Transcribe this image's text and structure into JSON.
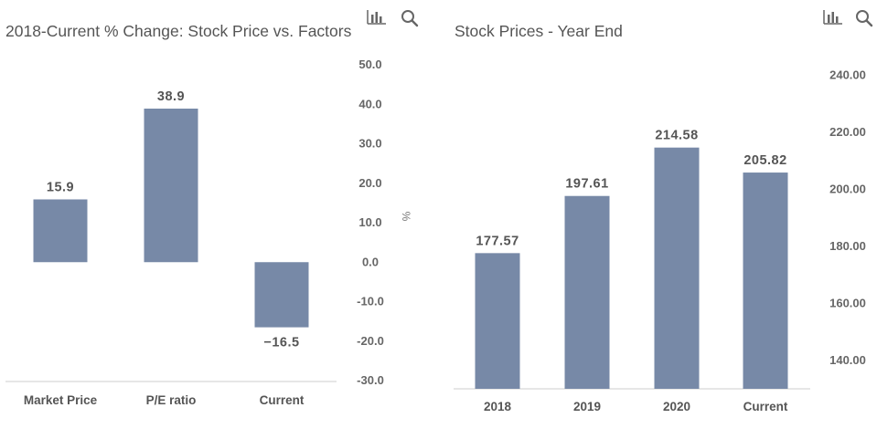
{
  "colors": {
    "bar": "#7789a7",
    "axis": "#cccccc",
    "text": "#555555"
  },
  "toolbar": {
    "chart_icon": "bar-chart-icon",
    "search_icon": "search-icon"
  },
  "chart_data": [
    {
      "type": "bar",
      "title": "2018-Current % Change: Stock Price vs. Factors",
      "categories": [
        "Market Price",
        "P/E ratio",
        "Current"
      ],
      "values": [
        15.9,
        38.9,
        -16.5
      ],
      "data_labels": [
        "15.9",
        "38.9",
        "−16.5"
      ],
      "ylabel": "%",
      "ylim": [
        -30,
        50
      ],
      "yticks": [
        50,
        40,
        30,
        20,
        10,
        0,
        -10,
        -20,
        -30
      ],
      "ytick_labels": [
        "50.0",
        "40.0",
        "30.0",
        "20.0",
        "10.0",
        "0.0",
        "-10.0",
        "-20.0",
        "-30.0"
      ],
      "grid": false,
      "axis_side": "right"
    },
    {
      "type": "bar",
      "title": "Stock Prices - Year End",
      "categories": [
        "2018",
        "2019",
        "2020",
        "Current"
      ],
      "values": [
        177.57,
        197.61,
        214.58,
        205.82
      ],
      "data_labels": [
        "177.57",
        "197.61",
        "214.58",
        "205.82"
      ],
      "ylabel": "",
      "ylim": [
        130,
        250
      ],
      "yticks": [
        240,
        220,
        200,
        180,
        160,
        140
      ],
      "ytick_labels": [
        "240.00",
        "220.00",
        "200.00",
        "180.00",
        "160.00",
        "140.00"
      ],
      "grid": false,
      "axis_side": "right"
    }
  ]
}
